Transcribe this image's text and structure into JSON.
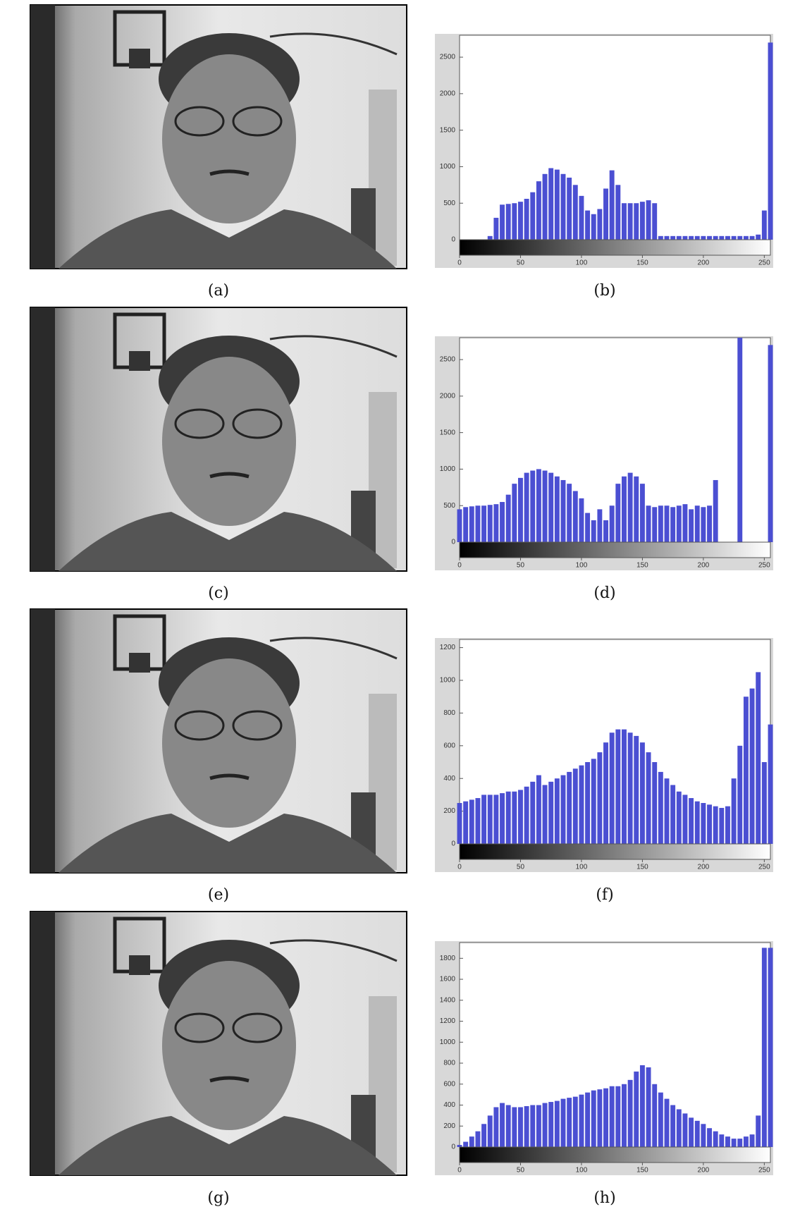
{
  "figure": {
    "captions": [
      "(a)",
      "(b)",
      "(c)",
      "(d)",
      "(e)",
      "(f)",
      "(g)",
      "(h)"
    ]
  },
  "chart_data": [
    {
      "type": "bar",
      "color": "#4b4fd2",
      "xlim": [
        0,
        255
      ],
      "xticks": [
        0,
        50,
        100,
        150,
        200,
        250
      ],
      "ylim": [
        0,
        2800
      ],
      "yticks": [
        0,
        500,
        1000,
        1500,
        2000,
        2500
      ],
      "x": [
        0,
        5,
        10,
        15,
        20,
        25,
        30,
        35,
        40,
        45,
        50,
        55,
        60,
        65,
        70,
        75,
        80,
        85,
        90,
        95,
        100,
        105,
        110,
        115,
        120,
        125,
        130,
        135,
        140,
        145,
        150,
        155,
        160,
        165,
        170,
        175,
        180,
        185,
        190,
        195,
        200,
        205,
        210,
        215,
        220,
        225,
        230,
        235,
        240,
        245,
        250,
        255
      ],
      "values": [
        0,
        0,
        0,
        0,
        0,
        50,
        300,
        480,
        490,
        500,
        520,
        560,
        650,
        800,
        900,
        980,
        960,
        900,
        850,
        750,
        600,
        400,
        350,
        420,
        700,
        950,
        750,
        500,
        500,
        500,
        520,
        540,
        500,
        50,
        50,
        50,
        50,
        50,
        50,
        50,
        50,
        50,
        50,
        50,
        50,
        50,
        50,
        50,
        50,
        70,
        400,
        2700
      ]
    },
    {
      "type": "bar",
      "color": "#4b4fd2",
      "xlim": [
        0,
        255
      ],
      "xticks": [
        0,
        50,
        100,
        150,
        200,
        250
      ],
      "ylim": [
        0,
        2800
      ],
      "yticks": [
        0,
        500,
        1000,
        1500,
        2000,
        2500
      ],
      "x": [
        0,
        5,
        10,
        15,
        20,
        25,
        30,
        35,
        40,
        45,
        50,
        55,
        60,
        65,
        70,
        75,
        80,
        85,
        90,
        95,
        100,
        105,
        110,
        115,
        120,
        125,
        130,
        135,
        140,
        145,
        150,
        155,
        160,
        165,
        170,
        175,
        180,
        185,
        190,
        195,
        200,
        205,
        210,
        215,
        220,
        225,
        230,
        235,
        240,
        245,
        250,
        255
      ],
      "values": [
        450,
        480,
        490,
        500,
        500,
        510,
        520,
        550,
        650,
        800,
        880,
        950,
        980,
        1000,
        980,
        950,
        900,
        850,
        800,
        700,
        600,
        400,
        300,
        450,
        300,
        500,
        800,
        900,
        950,
        900,
        800,
        500,
        480,
        500,
        500,
        480,
        500,
        520,
        450,
        500,
        480,
        500,
        850,
        0,
        0,
        0,
        2800,
        0,
        0,
        0,
        0,
        2700
      ]
    },
    {
      "type": "bar",
      "color": "#4b4fd2",
      "xlim": [
        0,
        255
      ],
      "xticks": [
        0,
        50,
        100,
        150,
        200,
        250
      ],
      "ylim": [
        0,
        1250
      ],
      "yticks": [
        0,
        200,
        400,
        600,
        800,
        1000,
        1200
      ],
      "x": [
        0,
        5,
        10,
        15,
        20,
        25,
        30,
        35,
        40,
        45,
        50,
        55,
        60,
        65,
        70,
        75,
        80,
        85,
        90,
        95,
        100,
        105,
        110,
        115,
        120,
        125,
        130,
        135,
        140,
        145,
        150,
        155,
        160,
        165,
        170,
        175,
        180,
        185,
        190,
        195,
        200,
        205,
        210,
        215,
        220,
        225,
        230,
        235,
        240,
        245,
        250,
        255
      ],
      "values": [
        250,
        260,
        270,
        280,
        300,
        300,
        300,
        310,
        320,
        320,
        330,
        350,
        380,
        420,
        360,
        380,
        400,
        420,
        440,
        460,
        480,
        500,
        520,
        560,
        620,
        680,
        700,
        700,
        680,
        660,
        620,
        560,
        500,
        440,
        400,
        360,
        320,
        300,
        280,
        260,
        250,
        240,
        230,
        220,
        230,
        400,
        600,
        900,
        950,
        1050,
        500,
        730
      ]
    },
    {
      "type": "bar",
      "color": "#4b4fd2",
      "xlim": [
        0,
        255
      ],
      "xticks": [
        0,
        50,
        100,
        150,
        200,
        250
      ],
      "ylim": [
        0,
        1950
      ],
      "yticks": [
        0,
        200,
        400,
        600,
        800,
        1000,
        1200,
        1400,
        1600,
        1800
      ],
      "x": [
        0,
        5,
        10,
        15,
        20,
        25,
        30,
        35,
        40,
        45,
        50,
        55,
        60,
        65,
        70,
        75,
        80,
        85,
        90,
        95,
        100,
        105,
        110,
        115,
        120,
        125,
        130,
        135,
        140,
        145,
        150,
        155,
        160,
        165,
        170,
        175,
        180,
        185,
        190,
        195,
        200,
        205,
        210,
        215,
        220,
        225,
        230,
        235,
        240,
        245,
        250,
        255
      ],
      "values": [
        20,
        50,
        100,
        150,
        220,
        300,
        380,
        420,
        400,
        380,
        380,
        390,
        400,
        400,
        420,
        430,
        440,
        460,
        470,
        480,
        500,
        520,
        540,
        550,
        560,
        580,
        580,
        600,
        640,
        720,
        780,
        760,
        600,
        520,
        460,
        400,
        360,
        320,
        280,
        250,
        220,
        180,
        150,
        120,
        100,
        80,
        80,
        100,
        120,
        300,
        1900,
        1900
      ]
    }
  ]
}
